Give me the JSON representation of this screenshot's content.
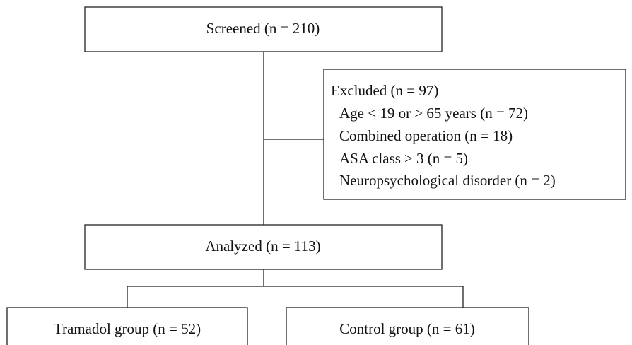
{
  "nodes": [
    {
      "label": "Screened (n = 210)"
    },
    {
      "label": "Excluded (n = 97)",
      "items": [
        "Age < 19 or > 65 years (n = 72)",
        "Combined operation (n = 18)",
        "ASA class ≥ 3 (n = 5)",
        "Neuropsychological disorder (n = 2)"
      ]
    },
    {
      "label": "Analyzed (n = 113)"
    },
    {
      "label": "Tramadol group (n = 52)"
    },
    {
      "label": "Control group (n = 61)"
    }
  ]
}
